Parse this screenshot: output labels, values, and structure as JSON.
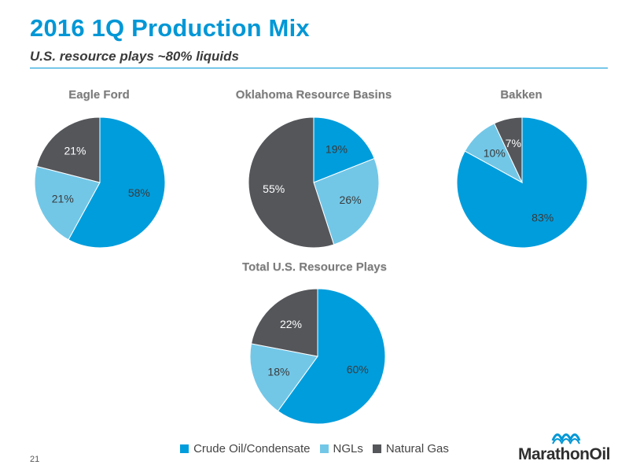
{
  "header": {
    "title": "2016 1Q Production Mix",
    "subtitle": "U.S. resource plays ~80% liquids"
  },
  "colors": {
    "crude": "#009ddc",
    "ngl": "#72c7e7",
    "gas": "#54565a",
    "accent": "#0097d6"
  },
  "chart_data": [
    {
      "type": "pie",
      "title": "Eagle Ford",
      "categories": [
        "Crude Oil/Condensate",
        "NGLs",
        "Natural Gas"
      ],
      "values": [
        58,
        21,
        21
      ],
      "labels": [
        "58%",
        "21%",
        "21%"
      ]
    },
    {
      "type": "pie",
      "title": "Oklahoma Resource Basins",
      "categories": [
        "Crude Oil/Condensate",
        "NGLs",
        "Natural Gas"
      ],
      "values": [
        19,
        26,
        55
      ],
      "labels": [
        "19%",
        "26%",
        "55%"
      ]
    },
    {
      "type": "pie",
      "title": "Bakken",
      "categories": [
        "Crude Oil/Condensate",
        "NGLs",
        "Natural Gas"
      ],
      "values": [
        83,
        10,
        7
      ],
      "labels": [
        "83%",
        "10%",
        "7%"
      ]
    },
    {
      "type": "pie",
      "title": "Total  U.S. Resource Plays",
      "categories": [
        "Crude Oil/Condensate",
        "NGLs",
        "Natural Gas"
      ],
      "values": [
        60,
        18,
        22
      ],
      "labels": [
        "60%",
        "18%",
        "22%"
      ]
    }
  ],
  "legend": {
    "items": [
      "Crude Oil/Condensate",
      "NGLs",
      "Natural Gas"
    ]
  },
  "footer": {
    "page_number": "21",
    "logo_text": "MarathonOil"
  }
}
